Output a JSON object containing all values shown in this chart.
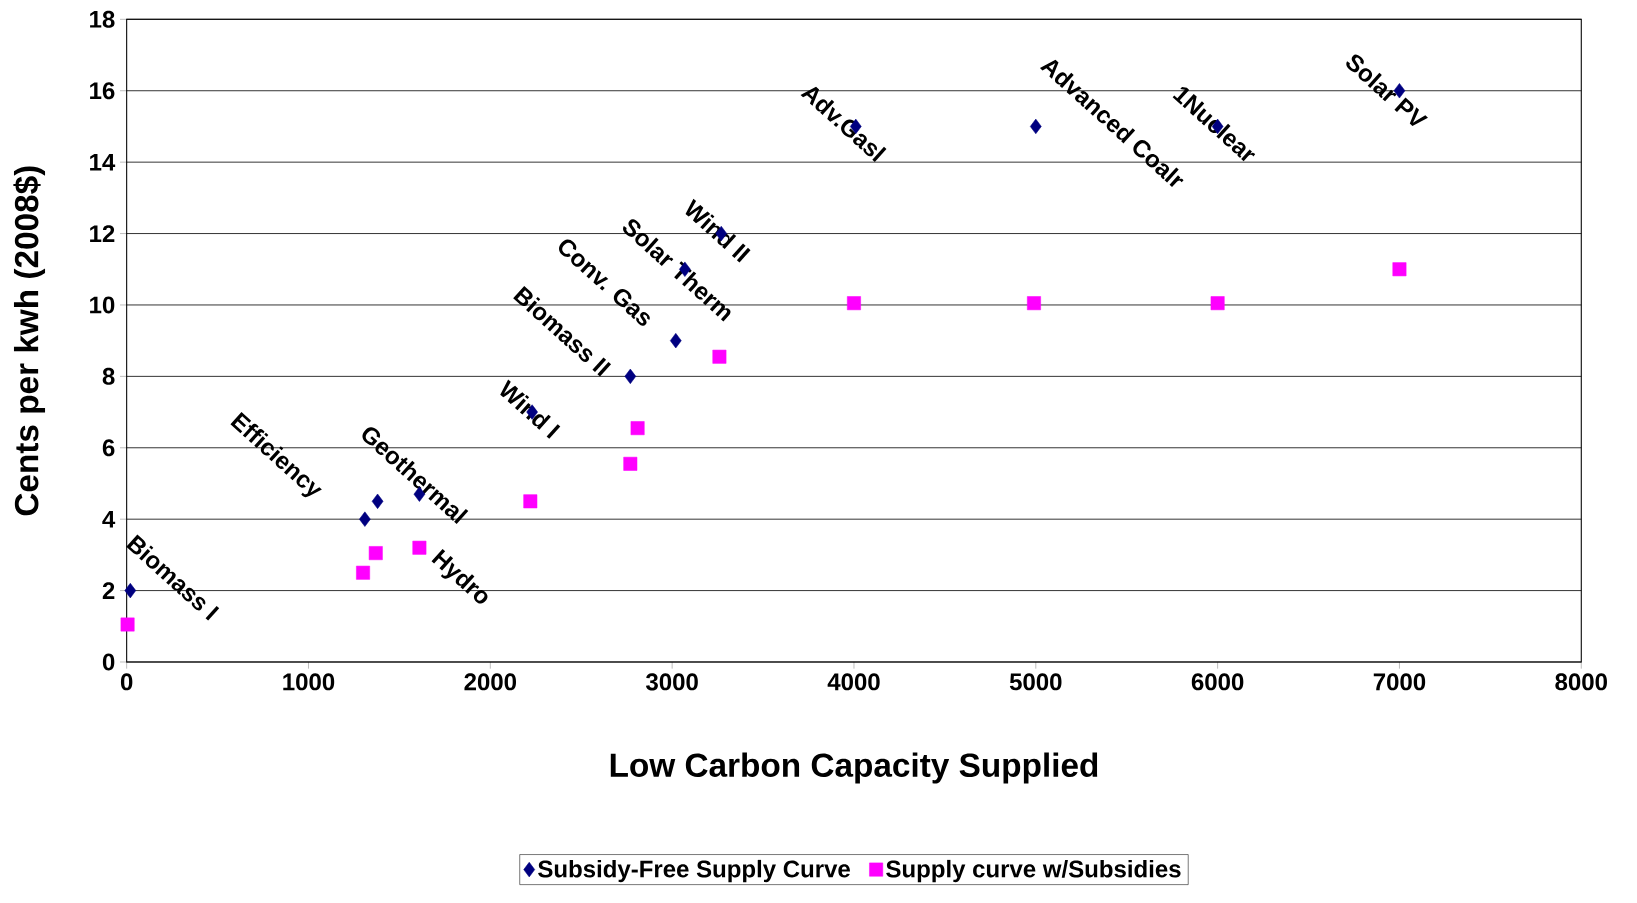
{
  "chart_data": {
    "type": "scatter",
    "xlabel": "Low Carbon Capacity Supplied",
    "ylabel": "Cents per kwh (2008$)",
    "xlim": [
      0,
      8000
    ],
    "xticks": [
      0,
      1000,
      2000,
      3000,
      4000,
      5000,
      6000,
      7000,
      8000
    ],
    "ylim": [
      0,
      18
    ],
    "yticks": [
      0,
      2,
      4,
      6,
      8,
      10,
      12,
      14,
      16,
      18
    ],
    "grid": "y",
    "legend": "bottom",
    "series": [
      {
        "name": "Subsidy-Free Supply Curve",
        "color": "#000080",
        "marker": "diamond",
        "x": [
          20,
          1310,
          1380,
          1610,
          2230,
          2770,
          3020,
          3070,
          3270,
          4010,
          5000,
          6000,
          7000
        ],
        "values": [
          2,
          4,
          4.5,
          4.7,
          7,
          8,
          9,
          11,
          12,
          15,
          15,
          15,
          16
        ]
      },
      {
        "name": "Supply curve w/Subsidies",
        "color": "#ff00ff",
        "marker": "square",
        "x": [
          5,
          1300,
          1370,
          1610,
          2220,
          2770,
          2810,
          3260,
          4000,
          4990,
          6000,
          7000
        ],
        "values": [
          1.05,
          2.5,
          3.05,
          3.2,
          4.5,
          5.55,
          6.55,
          8.55,
          10.05,
          10.05,
          10.05,
          11
        ]
      }
    ],
    "annotations": [
      {
        "text": "Biomass I",
        "x": 20,
        "y": 2
      },
      {
        "text": "Efficiency",
        "x": 1310,
        "y": 4
      },
      {
        "text": "Hydro",
        "x": 1380,
        "y": 4.5
      },
      {
        "text": "Geothermal",
        "x": 1610,
        "y": 4.7
      },
      {
        "text": "Wind I",
        "x": 2230,
        "y": 7
      },
      {
        "text": "Biomass II",
        "x": 2770,
        "y": 8
      },
      {
        "text": "Conv. Gas",
        "x": 3020,
        "y": 9
      },
      {
        "text": "Solar Therm",
        "x": 3070,
        "y": 11
      },
      {
        "text": "Wind II",
        "x": 3270,
        "y": 12
      },
      {
        "text": "Adv.Gasl",
        "x": 4010,
        "y": 15
      },
      {
        "text": "Advanced Coalr",
        "x": 5000,
        "y": 15
      },
      {
        "text": "1Nuclear",
        "x": 6000,
        "y": 15
      },
      {
        "text": "Solar PV",
        "x": 7000,
        "y": 16
      }
    ]
  }
}
